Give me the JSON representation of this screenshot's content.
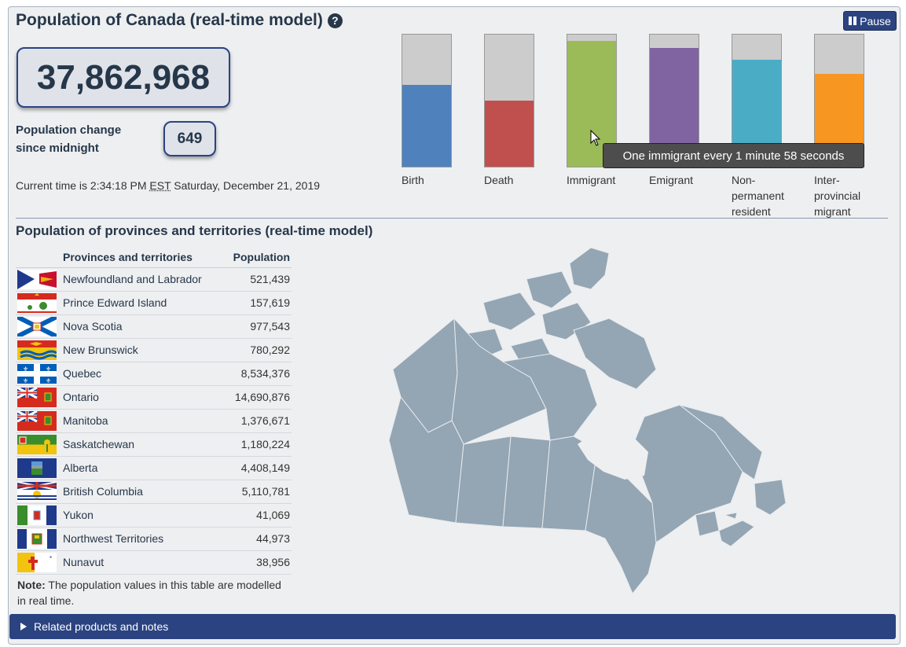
{
  "header": {
    "title": "Population of Canada (real-time model)",
    "help_icon": "question-circle-icon",
    "pause_label": "Pause"
  },
  "population": {
    "total": "37,862,968",
    "change_label_line1": "Population change",
    "change_label_line2": "since midnight",
    "change_value": "649"
  },
  "time": {
    "prefix": "Current time is 2:34:18 PM",
    "zone": "EST",
    "suffix": "Saturday, December 21, 2019"
  },
  "components": [
    {
      "label": "Birth",
      "fill": 0.62,
      "color": "#4f81bd"
    },
    {
      "label": "Death",
      "fill": 0.5,
      "color": "#c0504d"
    },
    {
      "label": "Immigrant",
      "fill": 0.95,
      "color": "#9bbb59"
    },
    {
      "label": "Emigrant",
      "fill": 0.9,
      "color": "#8064a2"
    },
    {
      "label": "Non-permanent resident",
      "label_lines": [
        "Non-",
        "permanent",
        "resident"
      ],
      "fill": 0.81,
      "color": "#4bacc6"
    },
    {
      "label": "Inter-provincial migrant",
      "label_lines": [
        "Inter-",
        "provincial",
        "migrant"
      ],
      "fill": 0.7,
      "color": "#f79620"
    }
  ],
  "tooltip": "One immigrant every 1 minute 58 seconds",
  "provinces": {
    "title": "Population of provinces and territories (real-time model)",
    "col_name": "Provinces and territories",
    "col_pop": "Population",
    "rows": [
      {
        "name": "Newfoundland and Labrador",
        "pop": "521,439",
        "flag": "nl-flag-icon"
      },
      {
        "name": "Prince Edward Island",
        "pop": "157,619",
        "flag": "pe-flag-icon"
      },
      {
        "name": "Nova Scotia",
        "pop": "977,543",
        "flag": "ns-flag-icon"
      },
      {
        "name": "New Brunswick",
        "pop": "780,292",
        "flag": "nb-flag-icon"
      },
      {
        "name": "Quebec",
        "pop": "8,534,376",
        "flag": "qc-flag-icon"
      },
      {
        "name": "Ontario",
        "pop": "14,690,876",
        "flag": "on-flag-icon"
      },
      {
        "name": "Manitoba",
        "pop": "1,376,671",
        "flag": "mb-flag-icon"
      },
      {
        "name": "Saskatchewan",
        "pop": "1,180,224",
        "flag": "sk-flag-icon"
      },
      {
        "name": "Alberta",
        "pop": "4,408,149",
        "flag": "ab-flag-icon"
      },
      {
        "name": "British Columbia",
        "pop": "5,110,781",
        "flag": "bc-flag-icon"
      },
      {
        "name": "Yukon",
        "pop": "41,069",
        "flag": "yt-flag-icon"
      },
      {
        "name": "Northwest Territories",
        "pop": "44,973",
        "flag": "nt-flag-icon"
      },
      {
        "name": "Nunavut",
        "pop": "38,956",
        "flag": "nu-flag-icon"
      }
    ],
    "note_bold": "Note:",
    "note_text": "The population values in this table are modelled in real time."
  },
  "related": {
    "label": "Related products and notes"
  },
  "colors": {
    "brand": "#2b4380",
    "text": "#26374a",
    "map": "#94a5b3"
  }
}
